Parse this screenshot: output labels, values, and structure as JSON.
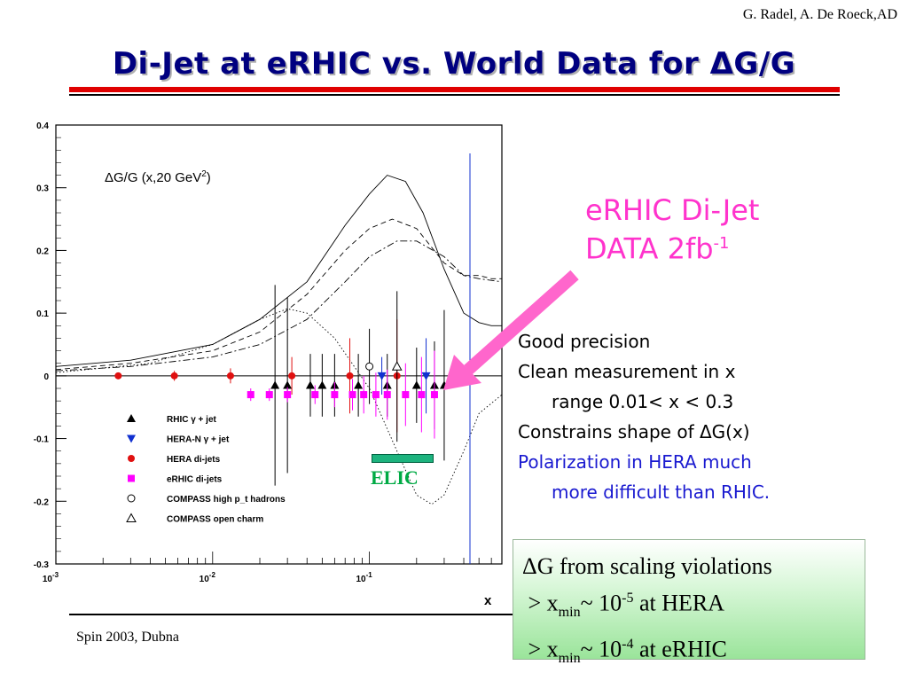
{
  "header": {
    "author": "G. Radel, A. De Roeck,AD",
    "title": "Di-Jet at eRHIC vs. World Data for ΔG/G"
  },
  "callout": {
    "line1": "eRHIC Di-Jet",
    "line2_prefix": "DATA 2fb",
    "line2_sup": "-1"
  },
  "bullets": {
    "b1": "Good precision",
    "b2a": "Clean measurement in x",
    "b2b": "range 0.01< x < 0.3",
    "b3": "Constrains shape of ΔG(x)",
    "b4a": "Polarization in HERA much",
    "b4b": "more difficult than RHIC."
  },
  "greenbox": {
    "l1": "ΔG from scaling violations",
    "l2_a": "> x",
    "l2_sub": "min",
    "l2_b": "~ 10",
    "l2_sup": "-5",
    "l2_c": " at HERA",
    "l3_a": "> x",
    "l3_sub": "min",
    "l3_b": "~ 10",
    "l3_sup": "-4",
    "l3_c": " at eRHIC"
  },
  "footer": "Spin 2003, Dubna",
  "elic_label": "ELIC",
  "colors": {
    "title": "#000080",
    "accent_pink": "#ff33cc",
    "rhic": "#000000",
    "heran": "#1030d0",
    "hera_dijets": "#e01010",
    "erhic": "#ff00ff",
    "elic": "#1db37e"
  },
  "chart_data": {
    "type": "scatter",
    "title": "ΔG/G (x,20 GeV²)",
    "xlabel": "x",
    "ylabel": "",
    "x_scale": "log",
    "xlim": [
      0.001,
      0.7
    ],
    "ylim": [
      -0.3,
      0.4
    ],
    "x_ticks": [
      {
        "v": 0.001,
        "base": "10",
        "exp": "-3"
      },
      {
        "v": 0.01,
        "base": "10",
        "exp": "-2"
      },
      {
        "v": 0.1,
        "base": "10",
        "exp": "-1"
      }
    ],
    "y_ticks": [
      {
        "v": 0.4,
        "label": "0.4"
      },
      {
        "v": 0.3,
        "label": "0.3"
      },
      {
        "v": 0.2,
        "label": "0.2"
      },
      {
        "v": 0.1,
        "label": "0.1"
      },
      {
        "v": 0,
        "label": "0"
      },
      {
        "v": -0.1,
        "label": "-0.1"
      },
      {
        "v": -0.2,
        "label": "-0.2"
      },
      {
        "v": -0.3,
        "label": "-0.3"
      }
    ],
    "legend_placement": "bottom-left",
    "series": [
      {
        "name": "RHIC γ + jet",
        "marker": "triangle-up",
        "color": "#000000",
        "points": [
          [
            0.025,
            -0.015,
            0.16
          ],
          [
            0.03,
            -0.015,
            0.14
          ],
          [
            0.042,
            -0.015,
            0.05
          ],
          [
            0.05,
            -0.015,
            0.05
          ],
          [
            0.06,
            -0.015,
            0.05
          ],
          [
            0.085,
            -0.015,
            0.05
          ],
          [
            0.13,
            -0.015,
            0.05
          ],
          [
            0.2,
            -0.015,
            0.06
          ],
          [
            0.26,
            -0.015,
            0.07
          ],
          [
            0.3,
            -0.015,
            0.12
          ]
        ]
      },
      {
        "name": "HERA-N γ + jet",
        "marker": "triangle-down",
        "color": "#1030d0",
        "points": [
          [
            0.12,
            0,
            0.03
          ],
          [
            0.23,
            0,
            0.06
          ]
        ]
      },
      {
        "name": "HERA di-jets",
        "marker": "circle",
        "color": "#e01010",
        "points": [
          [
            0.0025,
            0,
            0.005
          ],
          [
            0.0057,
            0,
            0.008
          ],
          [
            0.013,
            0,
            0.012
          ],
          [
            0.032,
            0,
            0.03
          ],
          [
            0.075,
            0,
            0.06
          ],
          [
            0.15,
            0,
            0.09
          ]
        ]
      },
      {
        "name": "eRHIC di-jets",
        "marker": "square",
        "color": "#ff00ff",
        "points": [
          [
            0.0175,
            -0.03,
            0.01
          ],
          [
            0.023,
            -0.03,
            0.01
          ],
          [
            0.03,
            -0.03,
            0.012
          ],
          [
            0.045,
            -0.03,
            0.015
          ],
          [
            0.06,
            -0.03,
            0.02
          ],
          [
            0.078,
            -0.03,
            0.025
          ],
          [
            0.092,
            -0.03,
            0.03
          ],
          [
            0.11,
            -0.03,
            0.035
          ],
          [
            0.13,
            -0.03,
            0.04
          ],
          [
            0.17,
            -0.03,
            0.05
          ],
          [
            0.215,
            -0.03,
            0.06
          ],
          [
            0.26,
            -0.03,
            0.07
          ]
        ]
      },
      {
        "name": "COMPASS high p_t hadrons",
        "marker": "circle-open",
        "color": "#000000",
        "points": [
          [
            0.1,
            0.015,
            0.06
          ]
        ]
      },
      {
        "name": "COMPASS open charm",
        "marker": "triangle-open",
        "color": "#000000",
        "points": [
          [
            0.15,
            0.015,
            0.12
          ]
        ]
      }
    ],
    "curves": [
      {
        "style": "solid",
        "points": [
          [
            0.001,
            0.015
          ],
          [
            0.003,
            0.025
          ],
          [
            0.01,
            0.05
          ],
          [
            0.02,
            0.09
          ],
          [
            0.04,
            0.15
          ],
          [
            0.07,
            0.24
          ],
          [
            0.1,
            0.29
          ],
          [
            0.13,
            0.32
          ],
          [
            0.17,
            0.31
          ],
          [
            0.22,
            0.26
          ],
          [
            0.3,
            0.17
          ],
          [
            0.4,
            0.1
          ],
          [
            0.5,
            0.085
          ],
          [
            0.6,
            0.08
          ],
          [
            0.7,
            0.08
          ]
        ]
      },
      {
        "style": "dashed",
        "points": [
          [
            0.001,
            0.01
          ],
          [
            0.003,
            0.02
          ],
          [
            0.01,
            0.04
          ],
          [
            0.02,
            0.07
          ],
          [
            0.04,
            0.13
          ],
          [
            0.07,
            0.2
          ],
          [
            0.1,
            0.235
          ],
          [
            0.14,
            0.25
          ],
          [
            0.2,
            0.235
          ],
          [
            0.3,
            0.18
          ],
          [
            0.4,
            0.16
          ],
          [
            0.5,
            0.16
          ],
          [
            0.6,
            0.155
          ],
          [
            0.7,
            0.155
          ]
        ]
      },
      {
        "style": "dashdot",
        "points": [
          [
            0.001,
            0.008
          ],
          [
            0.003,
            0.015
          ],
          [
            0.01,
            0.03
          ],
          [
            0.02,
            0.05
          ],
          [
            0.04,
            0.09
          ],
          [
            0.07,
            0.15
          ],
          [
            0.1,
            0.19
          ],
          [
            0.15,
            0.215
          ],
          [
            0.2,
            0.215
          ],
          [
            0.3,
            0.19
          ],
          [
            0.4,
            0.16
          ],
          [
            0.5,
            0.155
          ],
          [
            0.7,
            0.15
          ]
        ]
      },
      {
        "style": "dotted",
        "points": [
          [
            0.001,
            0.005
          ],
          [
            0.004,
            0.02
          ],
          [
            0.01,
            0.05
          ],
          [
            0.02,
            0.09
          ],
          [
            0.03,
            0.107
          ],
          [
            0.04,
            0.1
          ],
          [
            0.06,
            0.06
          ],
          [
            0.1,
            -0.02
          ],
          [
            0.15,
            -0.12
          ],
          [
            0.2,
            -0.19
          ],
          [
            0.25,
            -0.205
          ],
          [
            0.3,
            -0.19
          ],
          [
            0.4,
            -0.12
          ],
          [
            0.5,
            -0.06
          ],
          [
            0.7,
            -0.03
          ]
        ]
      }
    ]
  }
}
